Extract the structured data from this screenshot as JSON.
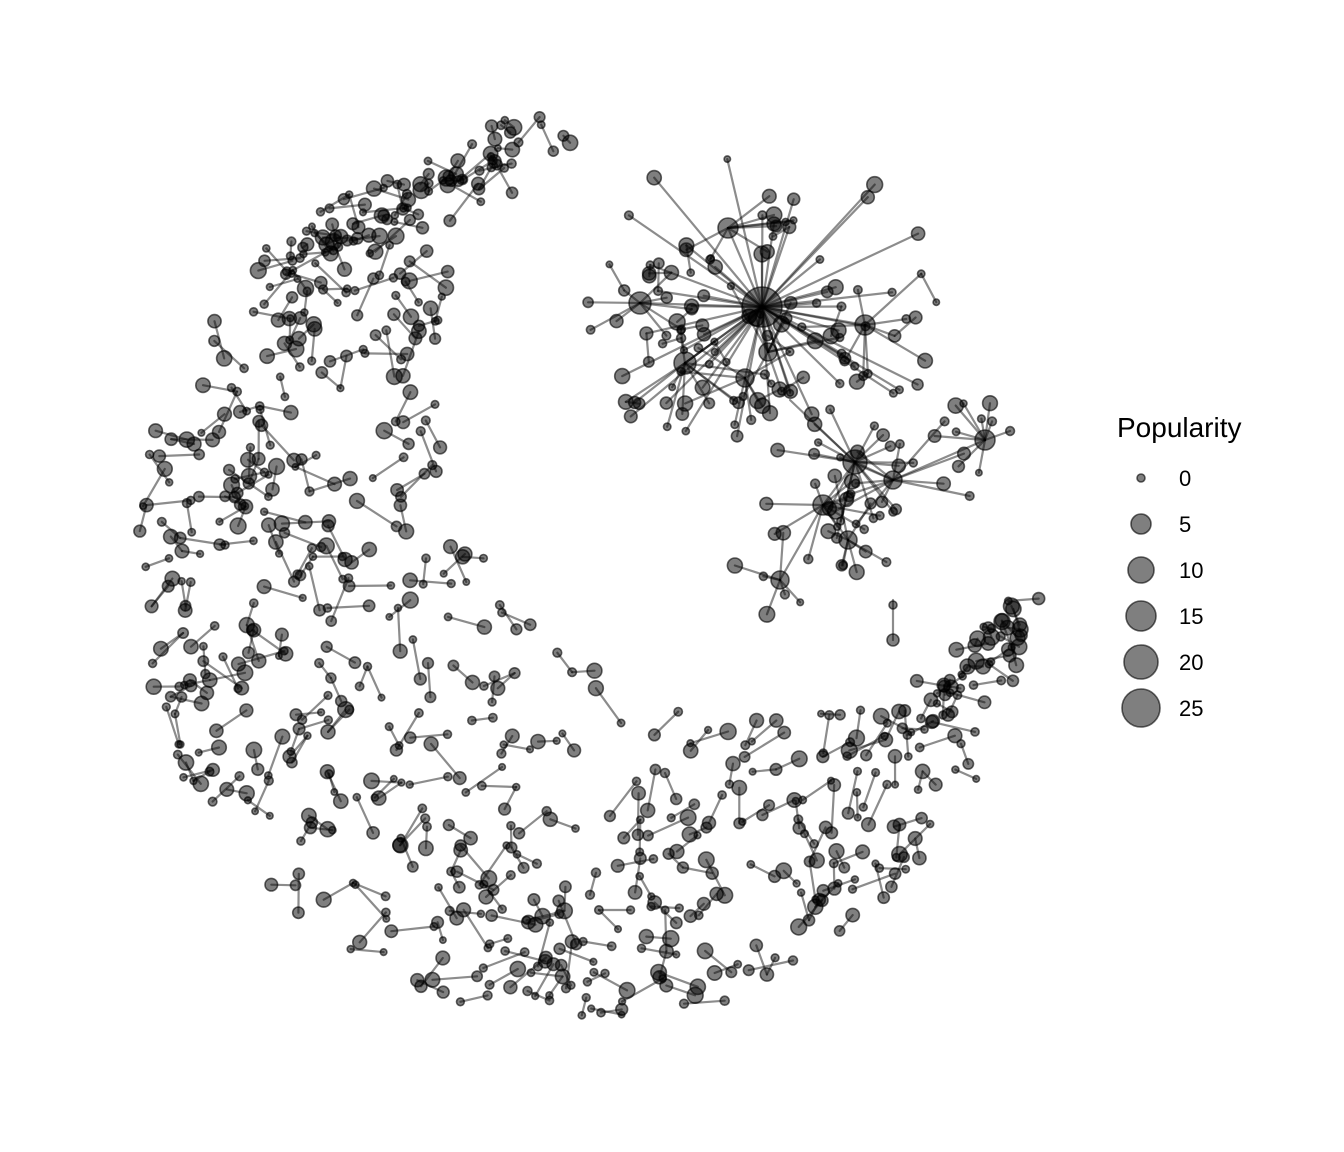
{
  "legend": {
    "title": "Popularity",
    "items": [
      {
        "value": 0,
        "label": "0"
      },
      {
        "value": 5,
        "label": "5"
      },
      {
        "value": 10,
        "label": "10"
      },
      {
        "value": 15,
        "label": "15"
      },
      {
        "value": 20,
        "label": "20"
      },
      {
        "value": 25,
        "label": "25"
      }
    ]
  },
  "style": {
    "node_color": "#000000",
    "edge_color": "#000000",
    "background": "#ffffff"
  }
}
